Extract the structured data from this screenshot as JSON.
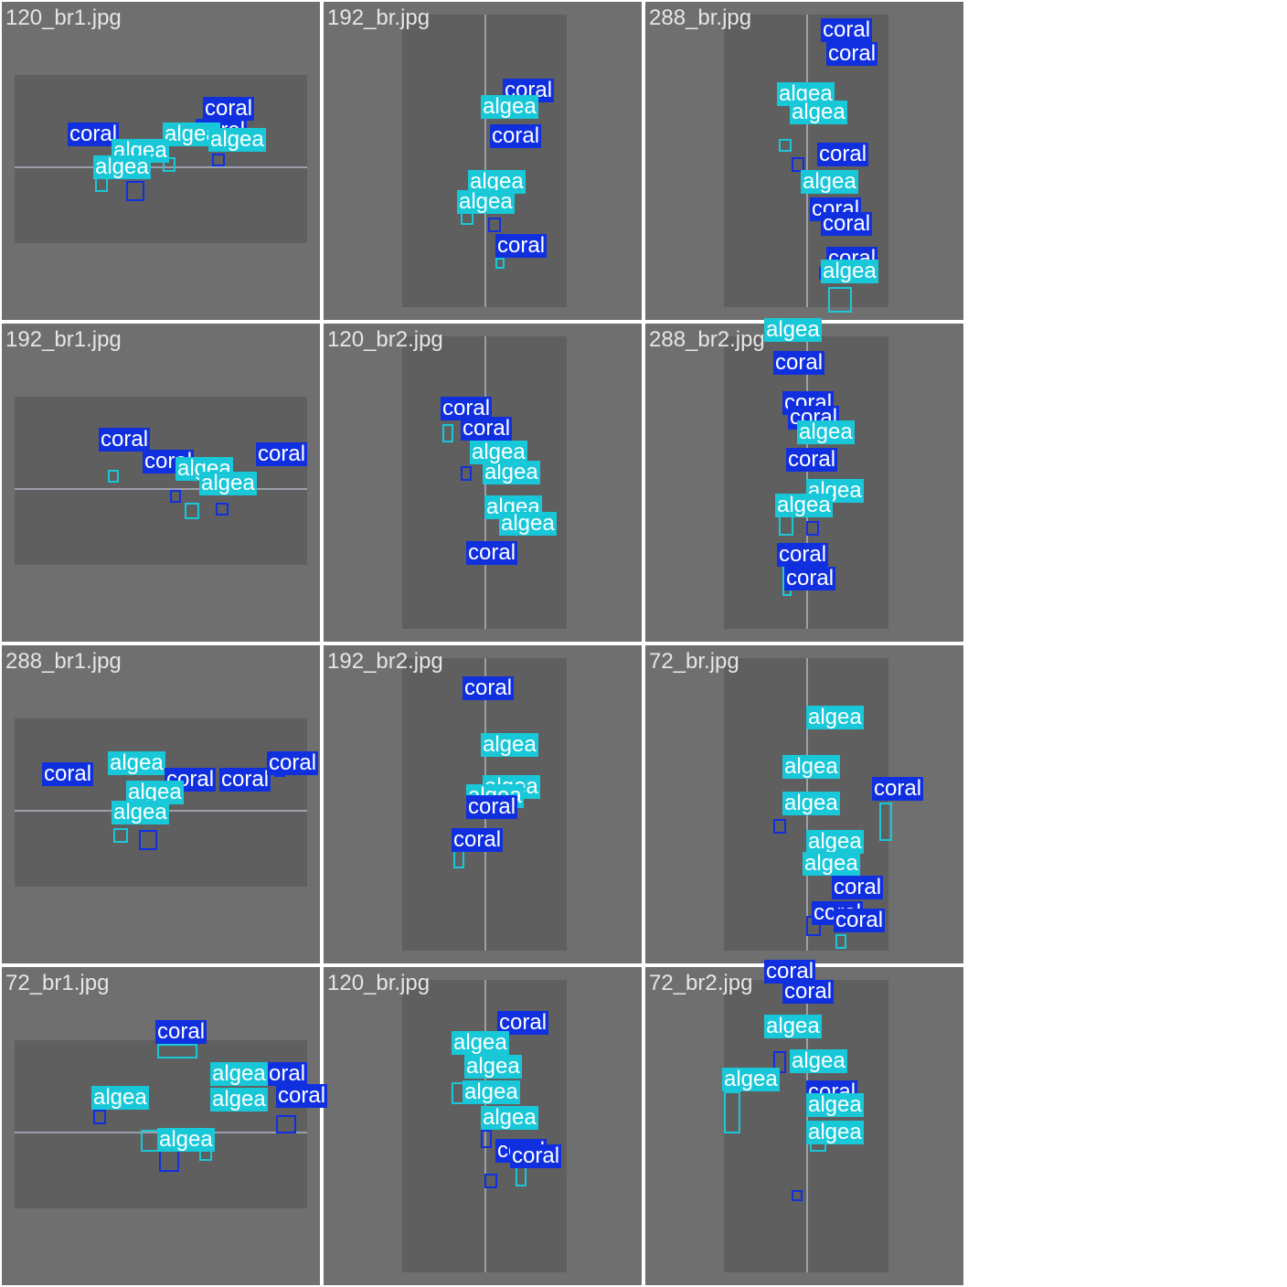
{
  "colors": {
    "algea": "#18c8d8",
    "coral": "#1030e0",
    "background": "#6f6f6f",
    "grid_line": "#ffffff"
  },
  "tiles": [
    {
      "filename": "120_br1.jpg",
      "orientation": "landscape",
      "labels": [
        {
          "cls": "coral",
          "text": "coral"
        },
        {
          "cls": "coral",
          "text": "coral"
        },
        {
          "cls": "coral",
          "text": "coral"
        },
        {
          "cls": "algea",
          "text": "algea"
        },
        {
          "cls": "algea",
          "text": "algea"
        },
        {
          "cls": "algea",
          "text": "algea"
        },
        {
          "cls": "algea",
          "text": "algea"
        }
      ]
    },
    {
      "filename": "192_br.jpg",
      "orientation": "portrait",
      "labels": [
        {
          "cls": "coral",
          "text": "coral"
        },
        {
          "cls": "coral",
          "text": "coral"
        },
        {
          "cls": "algea",
          "text": "algea"
        },
        {
          "cls": "algea",
          "text": "algea"
        },
        {
          "cls": "algea",
          "text": "algea"
        },
        {
          "cls": "coral",
          "text": "coral"
        }
      ]
    },
    {
      "filename": "288_br.jpg",
      "orientation": "portrait",
      "labels": [
        {
          "cls": "coral",
          "text": "coral"
        },
        {
          "cls": "coral",
          "text": "coral"
        },
        {
          "cls": "algea",
          "text": "algea"
        },
        {
          "cls": "algea",
          "text": "algea"
        },
        {
          "cls": "coral",
          "text": "coral"
        },
        {
          "cls": "algea",
          "text": "algea"
        },
        {
          "cls": "coral",
          "text": "coral"
        },
        {
          "cls": "coral",
          "text": "coral"
        },
        {
          "cls": "coral",
          "text": "coral"
        },
        {
          "cls": "algea",
          "text": "algea"
        }
      ]
    },
    {
      "filename": "192_br1.jpg",
      "orientation": "landscape",
      "labels": [
        {
          "cls": "coral",
          "text": "coral"
        },
        {
          "cls": "coral",
          "text": "coral"
        },
        {
          "cls": "coral",
          "text": "coral"
        },
        {
          "cls": "algea",
          "text": "algea"
        },
        {
          "cls": "algea",
          "text": "algea"
        }
      ]
    },
    {
      "filename": "120_br2.jpg",
      "orientation": "portrait",
      "labels": [
        {
          "cls": "coral",
          "text": "coral"
        },
        {
          "cls": "coral",
          "text": "coral"
        },
        {
          "cls": "algea",
          "text": "algea"
        },
        {
          "cls": "algea",
          "text": "algea"
        },
        {
          "cls": "algea",
          "text": "algea"
        },
        {
          "cls": "algea",
          "text": "algea"
        },
        {
          "cls": "coral",
          "text": "coral"
        }
      ]
    },
    {
      "filename": "288_br2.jpg",
      "orientation": "portrait",
      "labels": [
        {
          "cls": "algea",
          "text": "algea"
        },
        {
          "cls": "coral",
          "text": "coral"
        },
        {
          "cls": "coral",
          "text": "coral"
        },
        {
          "cls": "coral",
          "text": "coral"
        },
        {
          "cls": "algea",
          "text": "algea"
        },
        {
          "cls": "coral",
          "text": "coral"
        },
        {
          "cls": "algea",
          "text": "algea"
        },
        {
          "cls": "algea",
          "text": "algea"
        },
        {
          "cls": "coral",
          "text": "coral"
        },
        {
          "cls": "coral",
          "text": "coral"
        }
      ]
    },
    {
      "filename": "288_br1.jpg",
      "orientation": "landscape",
      "labels": [
        {
          "cls": "coral",
          "text": "coral"
        },
        {
          "cls": "algea",
          "text": "algea"
        },
        {
          "cls": "coral",
          "text": "coral"
        },
        {
          "cls": "coral",
          "text": "coral"
        },
        {
          "cls": "algea",
          "text": "algea"
        },
        {
          "cls": "algea",
          "text": "algea"
        },
        {
          "cls": "coral",
          "text": "coral"
        }
      ]
    },
    {
      "filename": "192_br2.jpg",
      "orientation": "portrait",
      "labels": [
        {
          "cls": "coral",
          "text": "coral"
        },
        {
          "cls": "algea",
          "text": "algea"
        },
        {
          "cls": "algea",
          "text": "algea"
        },
        {
          "cls": "algea",
          "text": "algea"
        },
        {
          "cls": "coral",
          "text": "coral"
        },
        {
          "cls": "coral",
          "text": "coral"
        }
      ]
    },
    {
      "filename": "72_br.jpg",
      "orientation": "portrait",
      "labels": [
        {
          "cls": "algea",
          "text": "algea"
        },
        {
          "cls": "algea",
          "text": "algea"
        },
        {
          "cls": "coral",
          "text": "coral"
        },
        {
          "cls": "algea",
          "text": "algea"
        },
        {
          "cls": "algea",
          "text": "algea"
        },
        {
          "cls": "algea",
          "text": "algea"
        },
        {
          "cls": "coral",
          "text": "coral"
        },
        {
          "cls": "coral",
          "text": "coral"
        },
        {
          "cls": "coral",
          "text": "coral"
        }
      ]
    },
    {
      "filename": "72_br1.jpg",
      "orientation": "landscape",
      "labels": [
        {
          "cls": "coral",
          "text": "coral"
        },
        {
          "cls": "algea",
          "text": "algea"
        },
        {
          "cls": "coral",
          "text": "coral"
        },
        {
          "cls": "algea",
          "text": "algea"
        },
        {
          "cls": "coral",
          "text": "coral"
        },
        {
          "cls": "algea",
          "text": "algea"
        },
        {
          "cls": "algea",
          "text": "algea"
        }
      ]
    },
    {
      "filename": "120_br.jpg",
      "orientation": "portrait",
      "labels": [
        {
          "cls": "coral",
          "text": "coral"
        },
        {
          "cls": "algea",
          "text": "algea"
        },
        {
          "cls": "algea",
          "text": "algea"
        },
        {
          "cls": "algea",
          "text": "algea"
        },
        {
          "cls": "algea",
          "text": "algea"
        },
        {
          "cls": "coral",
          "text": "coral"
        },
        {
          "cls": "coral",
          "text": "coral"
        }
      ]
    },
    {
      "filename": "72_br2.jpg",
      "orientation": "portrait",
      "labels": [
        {
          "cls": "coral",
          "text": "coral"
        },
        {
          "cls": "coral",
          "text": "coral"
        },
        {
          "cls": "algea",
          "text": "algea"
        },
        {
          "cls": "algea",
          "text": "algea"
        },
        {
          "cls": "coral",
          "text": "coral"
        },
        {
          "cls": "algea",
          "text": "algea"
        },
        {
          "cls": "algea",
          "text": "algea"
        },
        {
          "cls": "algea",
          "text": "algea"
        }
      ]
    }
  ]
}
